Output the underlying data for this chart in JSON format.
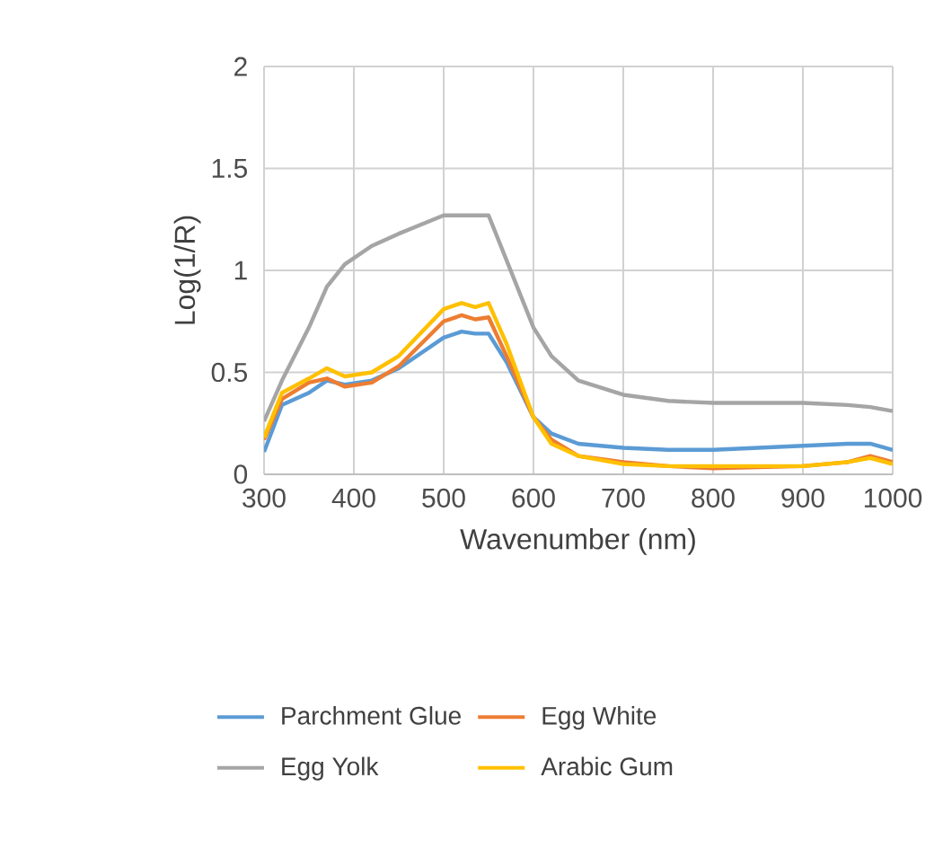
{
  "chart_data": {
    "type": "line",
    "xlabel": "Wavenumber (nm)",
    "ylabel": "Log(1/R)",
    "xlim": [
      300,
      1000
    ],
    "xticks": [
      300,
      400,
      500,
      600,
      700,
      800,
      900,
      1000
    ],
    "ylim": [
      0,
      2
    ],
    "yticks": [
      0,
      0.5,
      1,
      1.5,
      2
    ],
    "grid": true,
    "legend": "bottom",
    "marker": "none",
    "line_style": "solid",
    "x": [
      300,
      320,
      350,
      370,
      390,
      420,
      450,
      500,
      520,
      535,
      550,
      570,
      600,
      620,
      650,
      700,
      750,
      800,
      900,
      950,
      975,
      1000
    ],
    "series": [
      {
        "name": "Parchment Glue",
        "color": "#5b9bd5",
        "values": [
          0.11,
          0.34,
          0.4,
          0.46,
          0.44,
          0.46,
          0.52,
          0.67,
          0.7,
          0.69,
          0.69,
          0.55,
          0.28,
          0.2,
          0.15,
          0.13,
          0.12,
          0.12,
          0.14,
          0.15,
          0.15,
          0.12
        ]
      },
      {
        "name": "Egg White",
        "color": "#ed7d31",
        "values": [
          0.17,
          0.37,
          0.45,
          0.47,
          0.43,
          0.45,
          0.53,
          0.75,
          0.78,
          0.76,
          0.77,
          0.58,
          0.28,
          0.17,
          0.09,
          0.06,
          0.04,
          0.03,
          0.04,
          0.06,
          0.09,
          0.06
        ]
      },
      {
        "name": "Egg Yolk",
        "color": "#a5a5a5",
        "values": [
          0.26,
          0.46,
          0.72,
          0.92,
          1.03,
          1.12,
          1.18,
          1.27,
          1.27,
          1.27,
          1.27,
          1.05,
          0.72,
          0.58,
          0.46,
          0.39,
          0.36,
          0.35,
          0.35,
          0.34,
          0.33,
          0.31
        ]
      },
      {
        "name": "Arabic Gum",
        "color": "#ffc000",
        "values": [
          0.18,
          0.4,
          0.47,
          0.52,
          0.48,
          0.5,
          0.58,
          0.81,
          0.84,
          0.82,
          0.84,
          0.64,
          0.28,
          0.15,
          0.09,
          0.05,
          0.04,
          0.04,
          0.04,
          0.06,
          0.08,
          0.05
        ]
      }
    ]
  }
}
